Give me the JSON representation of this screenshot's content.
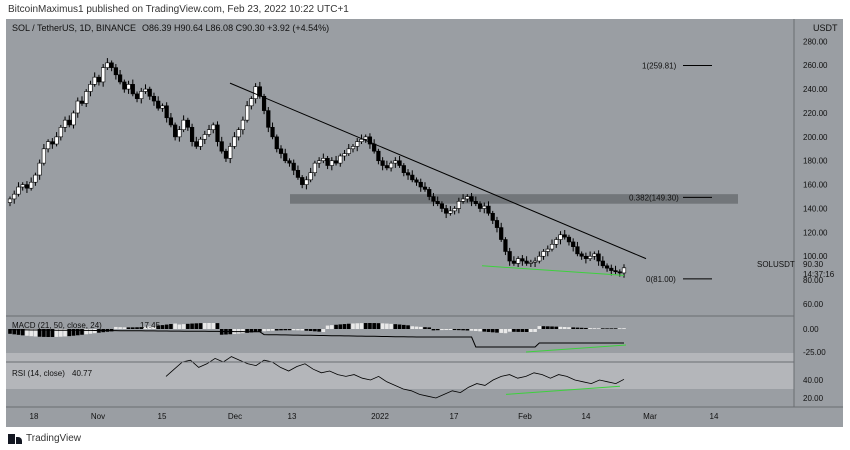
{
  "header": {
    "publish_text": "BitcoinMaximus1 published on TradingView.com, Feb 23, 2022 10:22 UTC+1"
  },
  "footer": {
    "brand": "TradingView"
  },
  "colors": {
    "bg": "#9a9ea3",
    "up": "#ffffff",
    "down": "#000000",
    "support": "#3dd13d",
    "trendline": "#000000",
    "zone": "#6e7176"
  },
  "chart_data": {
    "type": "candlestick",
    "symbol_line": {
      "symbol": "SOL / TetherUS, 1D, BINANCE",
      "ohlc": "O86.39 H90.64 L86.08 C90.30 +3.92 (+4.54%)"
    },
    "currency": "USDT",
    "price_axis": {
      "ticks": [
        "280.00",
        "260.00",
        "240.00",
        "220.00",
        "200.00",
        "180.00",
        "160.00",
        "140.00",
        "120.00",
        "100.00",
        "80.00",
        "60.00"
      ],
      "range": [
        60,
        287
      ]
    },
    "time_axis": {
      "ticks": [
        "18",
        "Nov",
        "15",
        "Dec",
        "13",
        "2022",
        "17",
        "Feb",
        "14",
        "Mar",
        "14"
      ]
    },
    "closes": [
      148,
      152,
      158,
      160,
      157,
      162,
      168,
      178,
      190,
      196,
      194,
      200,
      208,
      214,
      210,
      220,
      230,
      228,
      238,
      244,
      250,
      246,
      258,
      262,
      258,
      252,
      246,
      240,
      244,
      236,
      232,
      238,
      240,
      234,
      230,
      224,
      226,
      216,
      210,
      200,
      206,
      214,
      208,
      196,
      192,
      198,
      202,
      206,
      210,
      196,
      188,
      182,
      192,
      200,
      206,
      214,
      226,
      232,
      242,
      234,
      222,
      208,
      200,
      190,
      186,
      180,
      178,
      172,
      166,
      160,
      164,
      170,
      178,
      180,
      182,
      176,
      180,
      178,
      184,
      186,
      190,
      192,
      196,
      198,
      200,
      194,
      188,
      180,
      176,
      174,
      178,
      180,
      176,
      170,
      168,
      164,
      162,
      158,
      156,
      150,
      146,
      144,
      140,
      136,
      138,
      140,
      146,
      148,
      150,
      146,
      144,
      140,
      142,
      136,
      130,
      124,
      114,
      104,
      96,
      94,
      98,
      96,
      94,
      95,
      96,
      100,
      104,
      106,
      110,
      114,
      118,
      116,
      112,
      108,
      102,
      100,
      98,
      100,
      102,
      96,
      92,
      90,
      88,
      87,
      86,
      90.3
    ],
    "annotations": [
      {
        "text": "1(259.81)",
        "price": 259.81
      },
      {
        "text": "0.382(149.30)",
        "price": 149.3
      },
      {
        "text": "0(81.00)",
        "price": 81.0
      }
    ],
    "last_price": {
      "label": "SOLUSDT",
      "value": "90.30",
      "countdown": "14:37:16"
    },
    "macd": {
      "label": "MACD (21, 50, close, 24)",
      "value": "17.45",
      "ticks": [
        "0.00",
        "-25.00"
      ]
    },
    "rsi": {
      "label": "RSI (14, close)",
      "value": "40.77",
      "ticks": [
        "40.00",
        "20.00"
      ],
      "values": [
        44,
        52,
        60,
        62,
        54,
        58,
        64,
        60,
        66,
        62,
        58,
        56,
        62,
        60,
        54,
        50,
        55,
        58,
        52,
        48,
        50,
        46,
        44,
        46,
        42,
        40,
        44,
        38,
        34,
        30,
        28,
        24,
        22,
        20,
        24,
        28,
        26,
        32,
        36,
        34,
        40,
        44,
        46,
        42,
        44,
        48,
        46,
        42,
        46,
        44,
        40,
        38,
        36,
        40,
        38,
        36,
        40.77
      ]
    }
  }
}
